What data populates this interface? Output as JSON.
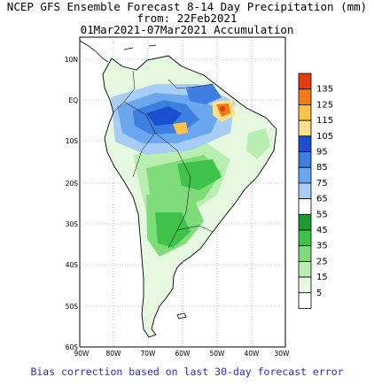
{
  "title": {
    "line1": "NCEP GFS Ensemble Forecast 8-14 Day Precipitation (mm)",
    "line2": "from: 22Feb2021",
    "line3": "01Mar2021-07Mar2021 Accumulation"
  },
  "axes": {
    "lat_labels": [
      "10N",
      "EQ",
      "10S",
      "20S",
      "30S",
      "40S",
      "50S",
      "60S"
    ],
    "lon_labels": [
      "90W",
      "80W",
      "70W",
      "60W",
      "50W",
      "40W",
      "30W"
    ]
  },
  "legend": {
    "levels": [
      "135",
      "125",
      "115",
      "105",
      "95",
      "85",
      "75",
      "65",
      "55",
      "45",
      "35",
      "25",
      "15",
      "5"
    ],
    "colors": [
      "#e63b10",
      "#f57b1a",
      "#fcc24a",
      "#fce08a",
      "#1a4fcf",
      "#3d7fe0",
      "#6aa7ef",
      "#a7cdf5",
      "#ffffff",
      "#1f9a2e",
      "#3fc24b",
      "#7fdc7a",
      "#b8efb0",
      "#e6f8e0",
      "#ffffff"
    ]
  },
  "footer": "Bias correction based on last 30-day forecast error",
  "chart_data": {
    "type": "heatmap",
    "variable": "precipitation (mm)",
    "lat_range": [
      "60S",
      "15N"
    ],
    "lon_range": [
      "90W",
      "30W"
    ],
    "legend_levels": [
      5,
      15,
      25,
      35,
      45,
      55,
      65,
      75,
      85,
      95,
      105,
      115,
      125,
      135
    ],
    "colors": {
      "light_green": "#b8efb0",
      "green": "#3fc24b",
      "dark_green": "#1f9a2e",
      "light_blue": "#a7cdf5",
      "blue": "#3d7fe0",
      "dark_blue": "#1a4fcf",
      "yellow": "#fcc24a",
      "orange": "#f57b1a",
      "red": "#e63b10"
    }
  }
}
